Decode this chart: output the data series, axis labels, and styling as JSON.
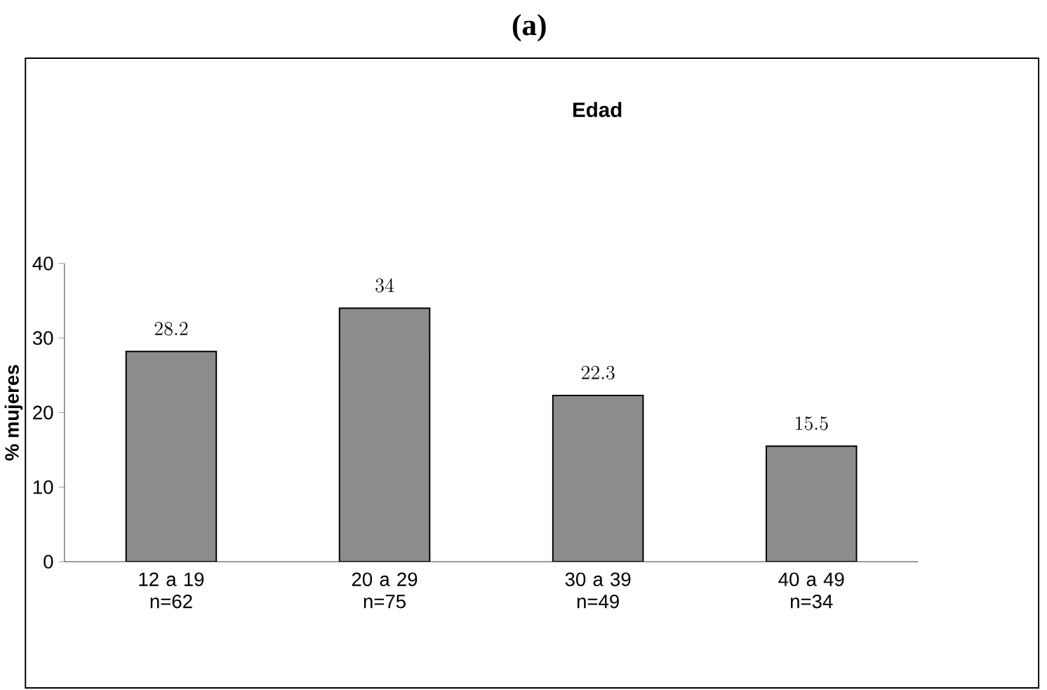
{
  "chart_data": {
    "type": "bar",
    "title": "(a)",
    "subtitle": "Edad",
    "ylabel": "% mujeres",
    "categories": [
      "12 a 19 n=62",
      "20 a 29 n=75",
      "30 a 39 n=49",
      "40 a 49 n=34"
    ],
    "values": [
      28.2,
      34,
      22.3,
      15.5
    ],
    "color": "#8c8c8c",
    "data_labels": true,
    "ylim": [
      0,
      40
    ],
    "yticks": [
      0,
      10,
      20,
      30,
      40
    ]
  }
}
